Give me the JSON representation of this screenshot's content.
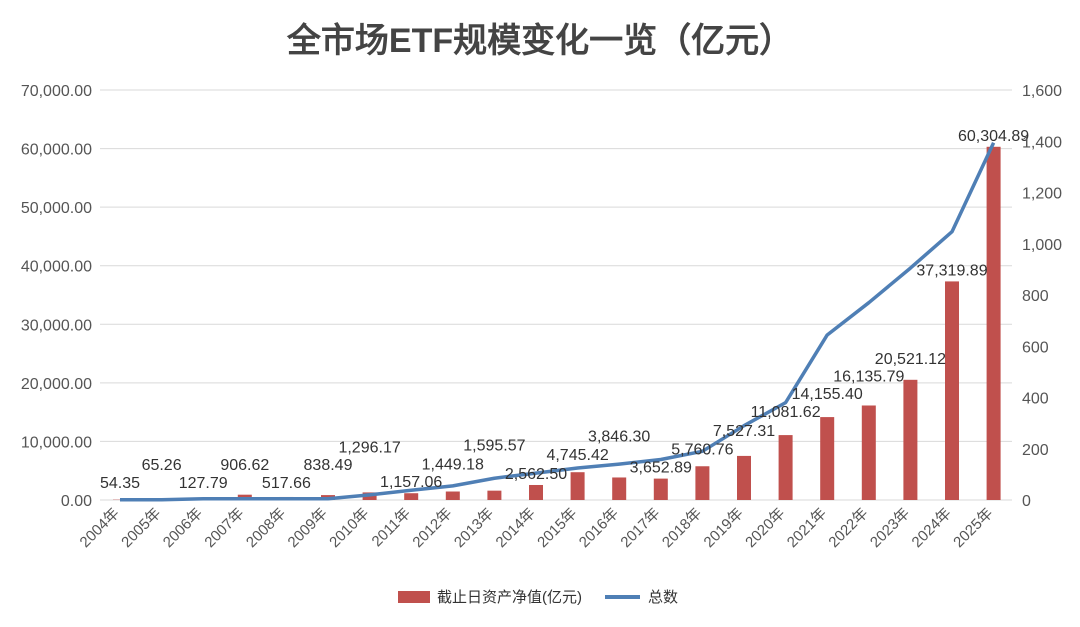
{
  "chart_data": {
    "type": "bar+line",
    "title": "全市场ETF规模变化一览（亿元）",
    "categories": [
      "2004年",
      "2005年",
      "2006年",
      "2007年",
      "2008年",
      "2009年",
      "2010年",
      "2011年",
      "2012年",
      "2013年",
      "2014年",
      "2015年",
      "2016年",
      "2017年",
      "2018年",
      "2019年",
      "2020年",
      "2021年",
      "2022年",
      "2023年",
      "2024年",
      "2025年"
    ],
    "series": [
      {
        "name": "截止日资产净值(亿元)",
        "type": "bar",
        "axis": "left",
        "color": "#c0504d",
        "values": [
          54.35,
          65.26,
          127.79,
          906.62,
          517.66,
          838.49,
          1296.17,
          1157.06,
          1449.18,
          1595.57,
          2562.5,
          4745.42,
          3846.3,
          3652.89,
          5760.76,
          7527.31,
          11081.62,
          14155.4,
          16135.79,
          20521.12,
          37319.89,
          60304.89
        ],
        "labels": [
          "54.35",
          "65.26",
          "127.79",
          "906.62",
          "517.66",
          "838.49",
          "1,296.17",
          "1,157.06",
          "1,449.18",
          "1,595.57",
          "2,562.50",
          "4,745.42",
          "3,846.30",
          "3,652.89",
          "5,760.76",
          "7,527.31",
          "11,081.62",
          "14,155.40",
          "16,135.79",
          "20,521.12",
          "37,319.89",
          "60,304.89"
        ]
      },
      {
        "name": "总数",
        "type": "line",
        "axis": "right",
        "color": "#4f7fb5",
        "values": [
          1,
          1,
          5,
          5,
          5,
          5,
          20,
          38,
          55,
          85,
          105,
          125,
          140,
          158,
          190,
          290,
          380,
          644,
          770,
          905,
          1047,
          1394
        ]
      }
    ],
    "left_axis": {
      "ylim": [
        0,
        70000
      ],
      "ticks": [
        "0.00",
        "10,000.00",
        "20,000.00",
        "30,000.00",
        "40,000.00",
        "50,000.00",
        "60,000.00",
        "70,000.00"
      ]
    },
    "right_axis": {
      "ylim": [
        0,
        1600
      ],
      "ticks": [
        "0",
        "200",
        "400",
        "600",
        "800",
        "1,000",
        "1,200",
        "1,400",
        "1,600"
      ]
    },
    "grid": true,
    "legend": "bottom"
  }
}
